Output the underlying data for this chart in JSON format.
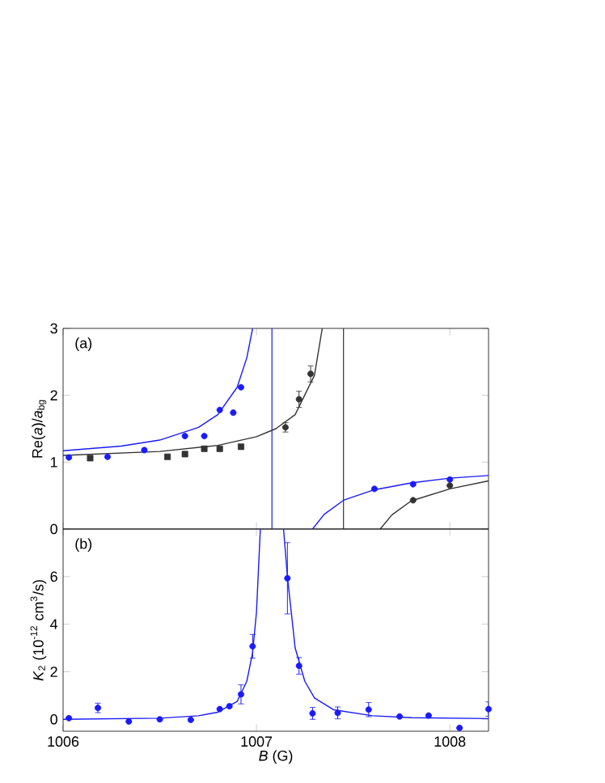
{
  "chart_data": [
    {
      "type": "scatter",
      "ylabel": "Re(*a*)/*a*$_{bg}$",
      "annotations": [
        "(a)"
      ],
      "xlim": [
        1006,
        1008.2
      ],
      "xticks": [
        1006,
        1007,
        1008
      ],
      "ylim": [
        0,
        3
      ],
      "yticks": [
        0,
        1,
        2,
        3
      ],
      "tick_labels": "y",
      "series": [
        {
          "type": "line",
          "color": "#1a1aff",
          "x": [
            1006,
            1006.3,
            1006.5,
            1006.7,
            1006.8,
            1006.9,
            1006.95,
            1006.98
          ],
          "values": [
            1.17,
            1.24,
            1.33,
            1.52,
            1.71,
            2.12,
            2.56,
            3.0
          ]
        },
        {
          "type": "line",
          "color": "#1a1aff",
          "x": [
            1007.29,
            1007.35,
            1007.45,
            1007.6,
            1007.8,
            1008.0,
            1008.2
          ],
          "values": [
            0,
            0.22,
            0.43,
            0.58,
            0.69,
            0.76,
            0.8
          ]
        },
        {
          "type": "line",
          "color": "#333333",
          "x": [
            1006,
            1006.5,
            1006.8,
            1007.0,
            1007.1,
            1007.2,
            1007.3,
            1007.34
          ],
          "values": [
            1.1,
            1.16,
            1.25,
            1.38,
            1.5,
            1.71,
            2.3,
            3.0
          ]
        },
        {
          "type": "line",
          "color": "#333333",
          "x": [
            1007.64,
            1007.7,
            1007.8,
            1008.0,
            1008.2
          ],
          "values": [
            0,
            0.21,
            0.42,
            0.6,
            0.72
          ]
        },
        {
          "marker": "square",
          "color": "#333333",
          "x": [
            1006.14,
            1006.54,
            1006.63,
            1006.73,
            1006.81,
            1006.92
          ],
          "values": [
            1.06,
            1.08,
            1.12,
            1.2,
            1.2,
            1.23
          ]
        },
        {
          "marker": "circle",
          "color": "#333333",
          "x": [
            1007.15,
            1007.22,
            1007.28,
            1007.81,
            1008.0
          ],
          "values": [
            1.52,
            1.94,
            2.32,
            0.43,
            0.65
          ],
          "errors": [
            0.07,
            0.12,
            0.12,
            null,
            null
          ]
        },
        {
          "marker": "circle",
          "color": "#1a1aff",
          "x": [
            1006.03,
            1006.23,
            1006.42,
            1006.63,
            1006.73,
            1006.81,
            1006.88,
            1006.92,
            1007.61,
            1007.81,
            1008.0
          ],
          "values": [
            1.07,
            1.08,
            1.18,
            1.39,
            1.39,
            1.78,
            1.74,
            2.12,
            0.6,
            0.67,
            0.74
          ]
        }
      ],
      "ref_lines": [
        {
          "axis": "x",
          "value": 1007.08,
          "color": "#1a1aff"
        },
        {
          "axis": "x",
          "value": 1007.45,
          "color": "#333333"
        }
      ]
    },
    {
      "type": "scatter",
      "xlabel": "*B* (G)",
      "ylabel": "*K*$_{2}$ (10$^{-12}$ cm$^{3}$/s)",
      "annotations": [
        "(b)"
      ],
      "xlim": [
        1006,
        1008.2
      ],
      "xticks": [
        1006,
        1007,
        1008
      ],
      "ylim": [
        -0.5,
        8
      ],
      "yticks": [
        0,
        2,
        4,
        6
      ],
      "series": [
        {
          "type": "line",
          "color": "#1a1aff",
          "x": [
            1006,
            1006.5,
            1006.7,
            1006.8,
            1006.9,
            1006.95,
            1006.98,
            1007.0,
            1007.02
          ],
          "values": [
            0,
            0.05,
            0.15,
            0.3,
            0.75,
            1.6,
            2.8,
            4.5,
            8
          ]
        },
        {
          "type": "line",
          "color": "#1a1aff",
          "x": [
            1007.14,
            1007.16,
            1007.2,
            1007.25,
            1007.3,
            1007.4,
            1007.6,
            1007.8,
            1008.2
          ],
          "values": [
            8,
            6.0,
            3.0,
            1.6,
            0.9,
            0.4,
            0.15,
            0.07,
            0.03
          ]
        },
        {
          "marker": "circle",
          "color": "#1a1aff",
          "x": [
            1006.03,
            1006.18,
            1006.34,
            1006.5,
            1006.66,
            1006.81,
            1006.86,
            1006.92,
            1006.98,
            1007.16,
            1007.22,
            1007.29,
            1007.42,
            1007.58,
            1007.74,
            1007.89,
            1008.05,
            1008.2
          ],
          "values": [
            0.05,
            0.48,
            -0.09,
            0.0,
            -0.02,
            0.43,
            0.55,
            1.05,
            3.07,
            5.93,
            2.25,
            0.25,
            0.27,
            0.41,
            0.12,
            0.16,
            -0.36,
            0.43
          ],
          "errors": [
            null,
            0.2,
            null,
            null,
            null,
            null,
            null,
            0.4,
            0.5,
            1.5,
            0.35,
            0.25,
            0.25,
            0.3,
            null,
            null,
            null,
            0.3
          ]
        }
      ]
    }
  ]
}
